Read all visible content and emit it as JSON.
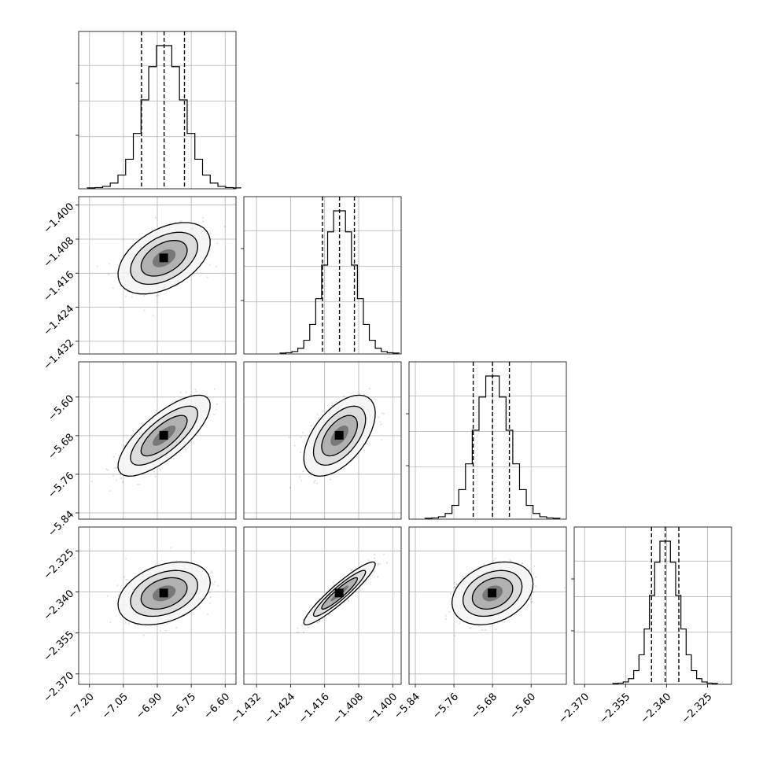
{
  "chart_data": {
    "type": "corner",
    "parameters": [
      {
        "ticks": [
          -7.2,
          -7.05,
          -6.9,
          -6.75,
          -6.6
        ],
        "tick_labels": [
          "−7.20",
          "−7.05",
          "−6.90",
          "−6.75",
          "−6.60"
        ],
        "lim": [
          -7.22,
          -6.58
        ],
        "quantiles": [
          -6.97,
          -6.87,
          -6.78
        ],
        "mean": -6.87,
        "sd": 0.085
      },
      {
        "ticks": [
          -1.432,
          -1.424,
          -1.416,
          -1.408,
          -1.4
        ],
        "tick_labels": [
          "−1.432",
          "−1.424",
          "−1.416",
          "−1.408",
          "−1.400"
        ],
        "lim": [
          -1.4335,
          -1.3995
        ],
        "quantiles": [
          -1.4165,
          -1.4125,
          -1.409
        ],
        "mean": -1.4125,
        "sd": 0.0035
      },
      {
        "ticks": [
          -5.84,
          -5.76,
          -5.68,
          -5.6
        ],
        "tick_labels": [
          "−5.84",
          "−5.76",
          "−5.68",
          "−5.60"
        ],
        "lim": [
          -5.84,
          -5.54
        ],
        "quantiles": [
          -5.72,
          -5.68,
          -5.645
        ],
        "mean": -5.68,
        "sd": 0.035
      },
      {
        "ticks": [
          -2.37,
          -2.355,
          -2.34,
          -2.325
        ],
        "tick_labels": [
          "−2.370",
          "−2.355",
          "−2.340",
          "−2.325"
        ],
        "lim": [
          -2.3715,
          -2.3185
        ],
        "quantiles": [
          -2.3455,
          -2.3405,
          -2.3355
        ],
        "mean": -2.3405,
        "sd": 0.0048
      }
    ],
    "correlations": {
      "1-0": 0.45,
      "2-0": 0.75,
      "2-1": 0.55,
      "3-0": 0.35,
      "3-1": 0.93,
      "3-2": 0.3
    },
    "grid": true,
    "quantile_line_style": "dashed"
  }
}
